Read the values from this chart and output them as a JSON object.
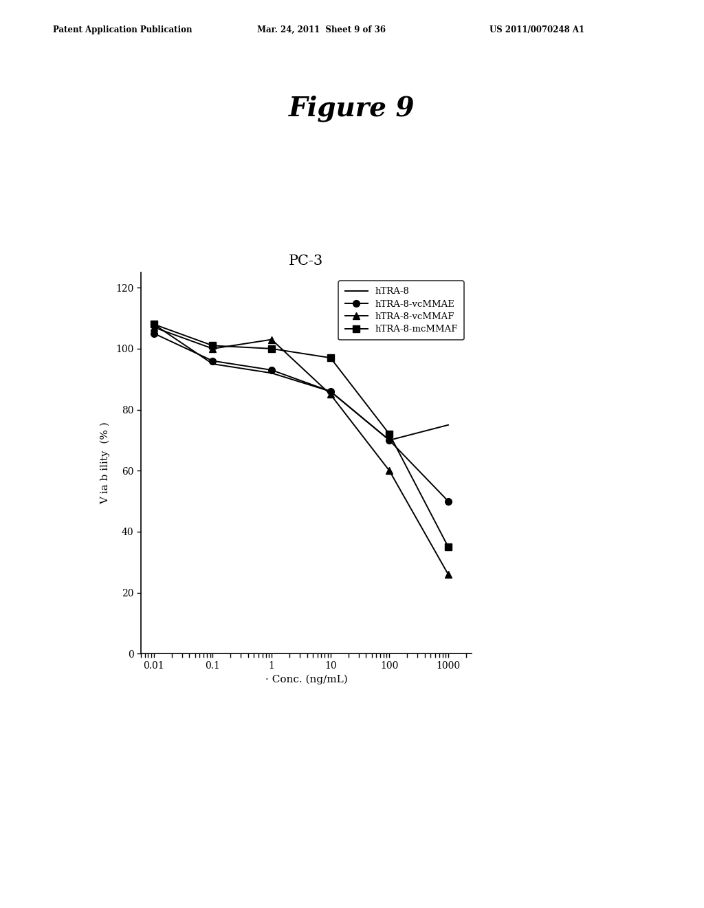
{
  "title_figure": "Figure 9",
  "chart_title": "PC-3",
  "xlabel": "· Conc. (ng/mL)",
  "ylabel": "V ia b ility  (% )",
  "patent_left": "Patent Application Publication",
  "patent_mid": "Mar. 24, 2011  Sheet 9 of 36",
  "patent_right": "US 2011/0070248 A1",
  "x_values": [
    0.01,
    0.1,
    1,
    10,
    100,
    1000
  ],
  "series": [
    {
      "label": "hTRA-8",
      "y": [
        108,
        95,
        92,
        86,
        70,
        75
      ],
      "color": "#000000",
      "marker": null,
      "markersize": 0,
      "linestyle": "-",
      "linewidth": 1.4
    },
    {
      "label": "hTRA-8-vcMMAE",
      "y": [
        105,
        96,
        93,
        86,
        70,
        50
      ],
      "color": "#000000",
      "marker": "o",
      "markersize": 7,
      "linestyle": "-",
      "linewidth": 1.4
    },
    {
      "label": "hTRA-8-vcMMAF",
      "y": [
        107,
        100,
        103,
        85,
        60,
        26
      ],
      "color": "#000000",
      "marker": "^",
      "markersize": 7,
      "linestyle": "-",
      "linewidth": 1.4
    },
    {
      "label": "hTRA-8-mcMMAF",
      "y": [
        108,
        101,
        100,
        97,
        72,
        35
      ],
      "color": "#000000",
      "marker": "s",
      "markersize": 7,
      "linestyle": "-",
      "linewidth": 1.4
    }
  ],
  "ylim": [
    0,
    125
  ],
  "yticks": [
    0,
    20,
    40,
    60,
    80,
    100,
    120
  ],
  "background_color": "#ffffff",
  "fig_width": 10.24,
  "fig_height": 13.2,
  "dpi": 100
}
